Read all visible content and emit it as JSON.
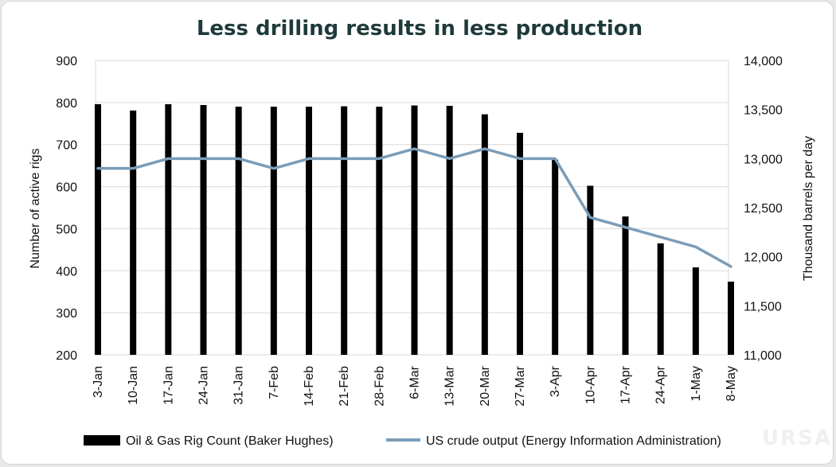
{
  "chart_data": {
    "type": "bar",
    "title": "Less drilling results in less production",
    "categories": [
      "3-Jan",
      "10-Jan",
      "17-Jan",
      "24-Jan",
      "31-Jan",
      "7-Feb",
      "14-Feb",
      "21-Feb",
      "28-Feb",
      "6-Mar",
      "13-Mar",
      "20-Mar",
      "27-Mar",
      "3-Apr",
      "10-Apr",
      "17-Apr",
      "24-Apr",
      "1-May",
      "8-May"
    ],
    "ylabel": "Number of active rigs",
    "y2label": "Thousand barrels per day",
    "ylim": [
      200,
      900
    ],
    "y2lim": [
      11000,
      14000
    ],
    "yticks": [
      "200",
      "300",
      "400",
      "500",
      "600",
      "700",
      "800",
      "900"
    ],
    "y2ticks": [
      "11,000",
      "11,500",
      "12,000",
      "12,500",
      "13,000",
      "13,500",
      "14,000"
    ],
    "grid": true,
    "legend_position": "bottom",
    "series": [
      {
        "name": "Oil & Gas Rig Count (Baker Hughes)",
        "type": "bar",
        "axis": "left",
        "color": "#000000",
        "values": [
          796,
          781,
          796,
          794,
          790,
          790,
          790,
          791,
          790,
          793,
          792,
          772,
          728,
          664,
          602,
          529,
          465,
          408,
          374
        ]
      },
      {
        "name": "US crude output (Energy Information Administration)",
        "type": "line",
        "axis": "right",
        "color": "#7a9cb8",
        "values": [
          12900,
          12900,
          13000,
          13000,
          13000,
          12900,
          13000,
          13000,
          13000,
          13100,
          13000,
          13100,
          13000,
          13000,
          12400,
          12300,
          12200,
          12100,
          11900
        ]
      }
    ]
  },
  "watermark": "URSA"
}
